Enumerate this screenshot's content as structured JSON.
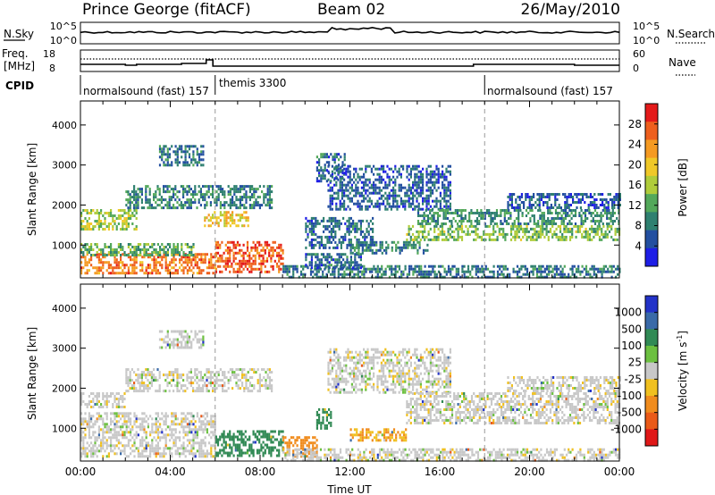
{
  "header": {
    "station": "Prince George (fitACF)",
    "beam": "Beam 02",
    "date": "26/May/2010"
  },
  "strip_labels": {
    "nsky": "N.Sky",
    "nsky_ticks": [
      "10^5",
      "10^0"
    ],
    "nsearch": "N.Search",
    "nsearch_ticks": [
      "10^5",
      "10^0"
    ],
    "freq_line1": "Freq.",
    "freq_line2": "[MHz]",
    "freq_ticks": [
      "18",
      "8"
    ],
    "nave": "Nave",
    "nave_ticks": [
      "60",
      "0"
    ],
    "cpid": "CPID"
  },
  "cpid_segments": [
    {
      "label": "normalsound (fast) 157",
      "start_hour": 0
    },
    {
      "label": "themis 3300",
      "start_hour": 6
    },
    {
      "label": "normalsound (fast) 157",
      "start_hour": 18
    }
  ],
  "chart_data": [
    {
      "type": "heatmap",
      "panel": "power",
      "xlabel": "",
      "ylabel": "Slant Range [km]",
      "x_range_hours": [
        0,
        24
      ],
      "ylim": [
        180,
        4600
      ],
      "yticks": [
        "1000",
        "2000",
        "3000",
        "4000"
      ],
      "colorbar_label": "Power [dB]",
      "colorbar_ticks": [
        "4",
        "8",
        "12",
        "16",
        "20",
        "24",
        "28"
      ],
      "colorbar_range": [
        0,
        32
      ],
      "colors": [
        "#1e1ee6",
        "#234fa0",
        "#2f8070",
        "#53a85a",
        "#b0cc3a",
        "#f0c828",
        "#f59a22",
        "#ee5f1e",
        "#e41a1a"
      ],
      "dashed_markers_hours": [
        6,
        18
      ],
      "echo_regions": [
        {
          "h0": 0.0,
          "h1": 6.0,
          "r0": 300,
          "r1": 800,
          "value": 25
        },
        {
          "h0": 6.0,
          "h1": 9.0,
          "r0": 300,
          "r1": 1100,
          "value": 27
        },
        {
          "h0": 0.0,
          "h1": 5.0,
          "r0": 750,
          "r1": 1050,
          "value": 12
        },
        {
          "h0": 9.0,
          "h1": 24.0,
          "r0": 200,
          "r1": 500,
          "value": 8
        },
        {
          "h0": 10.0,
          "h1": 12.5,
          "r0": 400,
          "r1": 800,
          "value": 7
        },
        {
          "h0": 0.0,
          "h1": 2.5,
          "r0": 1400,
          "r1": 1900,
          "value": 16
        },
        {
          "h0": 5.5,
          "h1": 7.5,
          "r0": 1500,
          "r1": 1850,
          "value": 20
        },
        {
          "h0": 2.0,
          "h1": 8.5,
          "r0": 1900,
          "r1": 2500,
          "value": 9
        },
        {
          "h0": 3.5,
          "h1": 5.5,
          "r0": 3000,
          "r1": 3500,
          "value": 8
        },
        {
          "h0": 10.0,
          "h1": 13.0,
          "r0": 900,
          "r1": 1700,
          "value": 7
        },
        {
          "h0": 12.0,
          "h1": 15.5,
          "r0": 800,
          "r1": 1100,
          "value": 9
        },
        {
          "h0": 11.0,
          "h1": 16.5,
          "r0": 1900,
          "r1": 3000,
          "value": 6
        },
        {
          "h0": 10.5,
          "h1": 11.8,
          "r0": 2600,
          "r1": 3300,
          "value": 7
        },
        {
          "h0": 14.5,
          "h1": 24.0,
          "r0": 1100,
          "r1": 1500,
          "value": 14
        },
        {
          "h0": 15.0,
          "h1": 24.0,
          "r0": 1500,
          "r1": 1900,
          "value": 10
        },
        {
          "h0": 19.0,
          "h1": 24.0,
          "r0": 1900,
          "r1": 2300,
          "value": 6
        }
      ]
    },
    {
      "type": "heatmap",
      "panel": "velocity",
      "xlabel": "Time UT",
      "ylabel": "Slant Range [km]",
      "x_range_hours": [
        0,
        24
      ],
      "xticks": [
        "00:00",
        "04:00",
        "08:00",
        "12:00",
        "16:00",
        "20:00",
        "00:00"
      ],
      "ylim": [
        180,
        4600
      ],
      "yticks": [
        "1000",
        "2000",
        "3000",
        "4000"
      ],
      "colorbar_label": "Velocity [m s^-1]",
      "colorbar_ticks": [
        "1000",
        "500",
        "100",
        "25",
        "-25",
        "-100",
        "-500",
        "-1000"
      ],
      "colors": [
        "#2332c8",
        "#3a6aa8",
        "#318a55",
        "#6cc040",
        "#c8c8c8",
        "#f0c020",
        "#f08c1e",
        "#ea5a18",
        "#e01818"
      ],
      "dashed_markers_hours": [
        6,
        18
      ],
      "echo_regions": [
        {
          "h0": 0.0,
          "h1": 6.0,
          "r0": 300,
          "r1": 1400,
          "value": 0
        },
        {
          "h0": 0.0,
          "h1": 2.0,
          "r0": 1500,
          "r1": 1900,
          "value": 0
        },
        {
          "h0": 6.0,
          "h1": 9.0,
          "r0": 300,
          "r1": 950,
          "value": 150
        },
        {
          "h0": 9.0,
          "h1": 10.5,
          "r0": 300,
          "r1": 800,
          "value": -150
        },
        {
          "h0": 10.5,
          "h1": 11.2,
          "r0": 1000,
          "r1": 1500,
          "value": 200
        },
        {
          "h0": 12.0,
          "h1": 14.5,
          "r0": 700,
          "r1": 1000,
          "value": -100
        },
        {
          "h0": 3.5,
          "h1": 5.5,
          "r0": 3000,
          "r1": 3450,
          "value": 0
        },
        {
          "h0": 2.0,
          "h1": 8.5,
          "r0": 1900,
          "r1": 2500,
          "value": 0
        },
        {
          "h0": 11.0,
          "h1": 16.5,
          "r0": 1900,
          "r1": 3000,
          "value": 0
        },
        {
          "h0": 9.0,
          "h1": 24.0,
          "r0": 200,
          "r1": 500,
          "value": 0
        },
        {
          "h0": 14.5,
          "h1": 24.0,
          "r0": 1100,
          "r1": 1900,
          "value": 0
        },
        {
          "h0": 19.0,
          "h1": 24.0,
          "r0": 1900,
          "r1": 2300,
          "value": 0
        }
      ]
    }
  ]
}
